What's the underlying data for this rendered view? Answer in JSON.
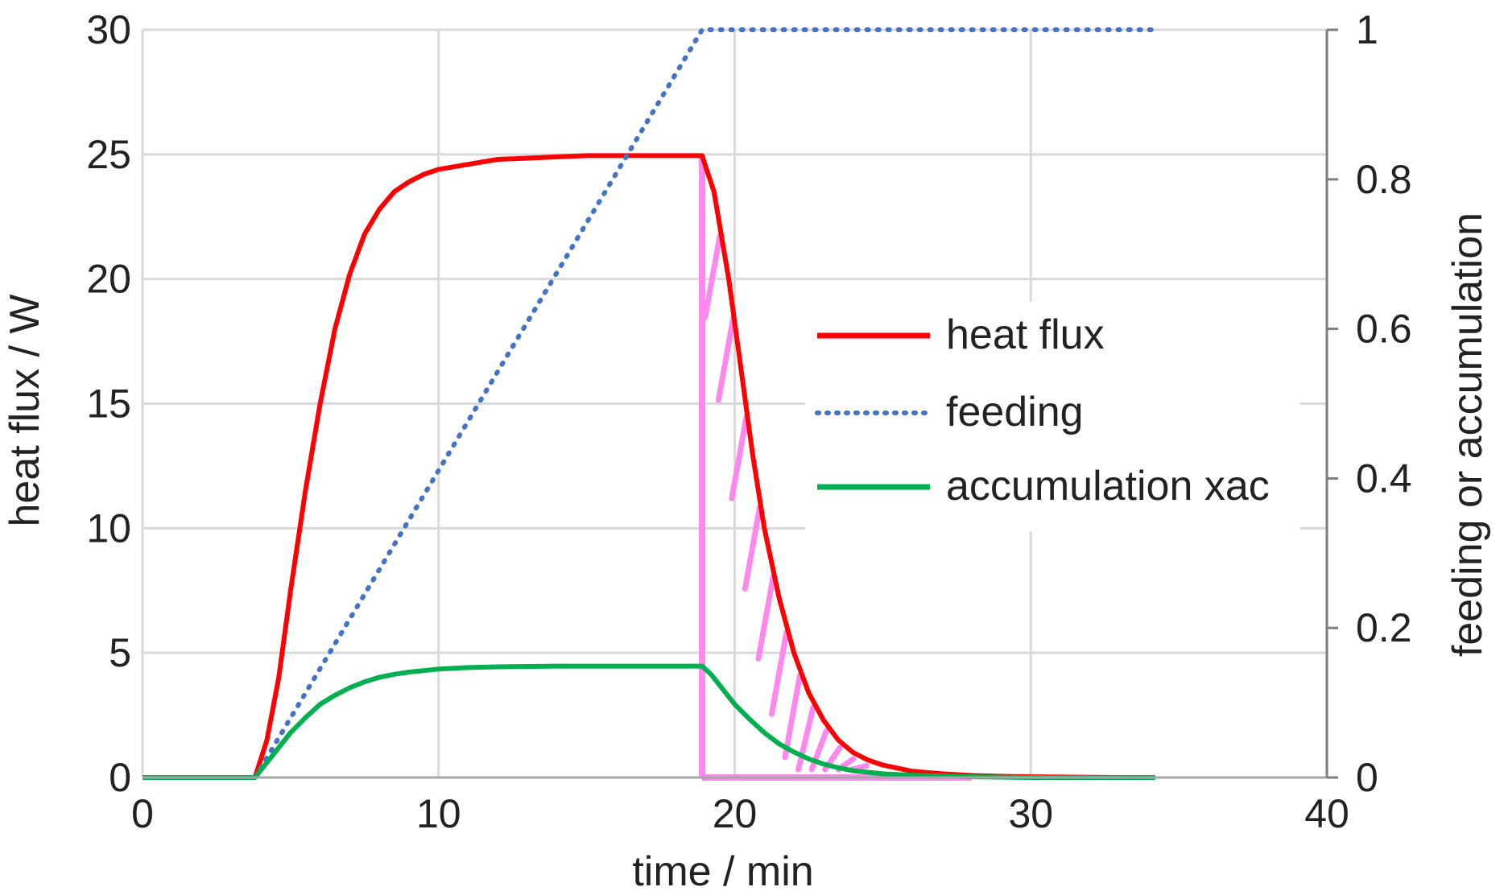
{
  "chart_data": {
    "type": "line",
    "xlabel": "time / min",
    "ylabel": "heat flux / W",
    "y2label": "feeding or accumulation",
    "xlim": [
      0,
      40
    ],
    "ylim": [
      0,
      30
    ],
    "y2lim": [
      0,
      1
    ],
    "xticks": [
      "0",
      "10",
      "20",
      "30",
      "40"
    ],
    "yticks": [
      "0",
      "5",
      "10",
      "15",
      "20",
      "25",
      "30"
    ],
    "y2ticks": [
      "0",
      "0.2",
      "0.4",
      "0.6",
      "0.8",
      "1"
    ],
    "grid": true,
    "legend_position": "center-right",
    "series": [
      {
        "name": "heat flux",
        "axis": "left",
        "style": "solid",
        "color": "#ff0000",
        "x": [
          0,
          3.8,
          4.2,
          4.6,
          5.0,
          5.5,
          6.0,
          6.5,
          7.0,
          7.5,
          8.0,
          8.5,
          9.0,
          9.5,
          10.0,
          11.0,
          12.0,
          13.0,
          14.0,
          15.0,
          16.0,
          17.0,
          18.0,
          18.9,
          19.3,
          19.8,
          20.2,
          20.6,
          21.0,
          21.5,
          22.0,
          22.5,
          23.0,
          23.5,
          24.0,
          24.5,
          25.0,
          26.0,
          27.0,
          28.0,
          29.0,
          30.0,
          31.0,
          32.0,
          33.0,
          34.2
        ],
        "y": [
          0,
          0,
          1.5,
          4.0,
          7.5,
          11.5,
          15.0,
          18.0,
          20.2,
          21.8,
          22.8,
          23.5,
          23.9,
          24.2,
          24.4,
          24.6,
          24.8,
          24.85,
          24.9,
          24.95,
          24.95,
          24.95,
          24.95,
          24.95,
          23.5,
          20.0,
          16.5,
          13.0,
          10.0,
          7.2,
          5.0,
          3.4,
          2.3,
          1.5,
          1.0,
          0.7,
          0.5,
          0.25,
          0.15,
          0.08,
          0.05,
          0.03,
          0.02,
          0.01,
          0.0,
          0.0
        ]
      },
      {
        "name": "feeding",
        "axis": "right",
        "style": "dotted",
        "color": "#4472c4",
        "x": [
          3.8,
          18.9,
          34.2
        ],
        "y": [
          0,
          1.0,
          1.0
        ]
      },
      {
        "name": "accumulation xac",
        "axis": "right",
        "style": "solid",
        "color": "#00b050",
        "x": [
          0,
          3.8,
          4.5,
          5.0,
          5.5,
          6.0,
          6.5,
          7.0,
          7.5,
          8.0,
          8.5,
          9.0,
          10.0,
          11.0,
          12.0,
          14.0,
          16.0,
          18.0,
          18.9,
          19.2,
          19.6,
          20.0,
          20.5,
          21.0,
          21.5,
          22.0,
          22.5,
          23.0,
          23.5,
          24.0,
          25.0,
          26.0,
          27.0,
          28.0,
          30.0,
          32.0,
          34.2
        ],
        "y": [
          0,
          0,
          0.035,
          0.06,
          0.08,
          0.098,
          0.11,
          0.12,
          0.128,
          0.134,
          0.138,
          0.141,
          0.145,
          0.147,
          0.148,
          0.149,
          0.149,
          0.149,
          0.149,
          0.138,
          0.118,
          0.098,
          0.078,
          0.06,
          0.045,
          0.034,
          0.025,
          0.018,
          0.013,
          0.009,
          0.005,
          0.003,
          0.002,
          0.001,
          0.0,
          0.0,
          0.0
        ]
      }
    ],
    "annotations": [
      {
        "type": "hatched-region",
        "description_of_bounds": "area under heat flux curve after dosing stops",
        "x_start": 18.9,
        "x_end": 28.0,
        "color": "#ff88ee"
      }
    ]
  },
  "legend": {
    "items": [
      {
        "label": "heat flux",
        "color": "#ff0000",
        "style": "solid"
      },
      {
        "label": "feeding",
        "color": "#4472c4",
        "style": "dotted"
      },
      {
        "label": "accumulation xac",
        "color": "#00b050",
        "style": "solid"
      }
    ]
  }
}
